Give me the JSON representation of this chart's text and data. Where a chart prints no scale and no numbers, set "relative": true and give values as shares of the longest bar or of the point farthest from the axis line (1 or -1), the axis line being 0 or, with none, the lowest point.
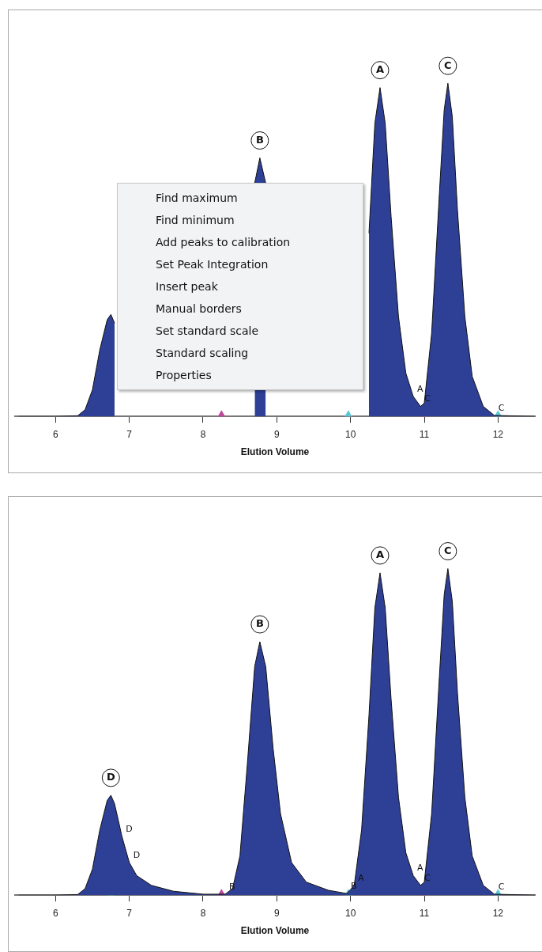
{
  "chart_data": [
    {
      "type": "area",
      "relative": true,
      "xlabel": "Elution Volume",
      "xlim": [
        5.45,
        12.5
      ],
      "xticks": [
        6,
        7,
        8,
        9,
        10,
        11,
        12
      ],
      "series": [
        {
          "color": "#2e3f96",
          "x": [
            5.5,
            6.0,
            6.3,
            6.4,
            6.5,
            6.6,
            6.7,
            6.75,
            6.8,
            6.9,
            7.0,
            7.1,
            7.3,
            7.6,
            8.0,
            8.3,
            8.4,
            8.5,
            8.6,
            8.7,
            8.77,
            8.85,
            8.95,
            9.05,
            9.2,
            9.4,
            9.7,
            9.95,
            10.05,
            10.15,
            10.25,
            10.33,
            10.4,
            10.47,
            10.55,
            10.65,
            10.75,
            10.85,
            10.95,
            11.0,
            11.1,
            11.2,
            11.27,
            11.32,
            11.38,
            11.45,
            11.55,
            11.65,
            11.8,
            11.95,
            12.5
          ],
          "values": [
            0,
            0,
            0.002,
            0.02,
            0.08,
            0.2,
            0.29,
            0.306,
            0.28,
            null,
            null,
            null,
            null,
            null,
            null,
            null,
            null,
            null,
            null,
            0.7,
            0.776,
            0.7,
            null,
            null,
            null,
            null,
            null,
            null,
            null,
            null,
            0.55,
            0.88,
            0.987,
            0.88,
            0.6,
            0.3,
            0.13,
            0.06,
            0.03,
            0.04,
            0.25,
            0.65,
            0.92,
            1,
            0.9,
            0.62,
            0.3,
            0.12,
            0.03,
            0.003,
            0
          ]
        },
        {
          "type": "scatter",
          "marker": "triangle",
          "x": [
            8.25,
            9.97,
            10.97,
            12.0
          ],
          "values": [
            0,
            0,
            0,
            0
          ],
          "colors": [
            "#c0479a",
            "#5bc8d6",
            "#c0479a",
            "#5bc8d6"
          ]
        }
      ],
      "annotations": [
        {
          "text": "B",
          "x": 8.77,
          "y": 0.776
        },
        {
          "text": "A",
          "x": 10.4,
          "y": 0.987
        },
        {
          "text": "C",
          "x": 11.32,
          "y": 1
        },
        {
          "text": "A",
          "x": 10.85,
          "y": 0.06
        },
        {
          "text": "C",
          "x": 10.95,
          "y": 0.03
        },
        {
          "text": "C",
          "x": 11.95,
          "y": 0.003
        },
        "Find maximum",
        "Find minimum",
        "Add peaks to calibration",
        "Set Peak Integration",
        "Insert peak",
        "Manual borders",
        "Set standard scale",
        "Standard scaling",
        "Properties"
      ]
    },
    {
      "type": "area",
      "relative": true,
      "xlabel": "Elution Volume",
      "xlim": [
        5.45,
        12.5
      ],
      "xticks": [
        6,
        7,
        8,
        9,
        10,
        11,
        12
      ],
      "series": [
        {
          "color": "#2e3f96",
          "x": [
            5.5,
            6.0,
            6.3,
            6.4,
            6.5,
            6.6,
            6.7,
            6.75,
            6.8,
            6.9,
            7.0,
            7.1,
            7.3,
            7.6,
            8.0,
            8.3,
            8.4,
            8.5,
            8.6,
            8.7,
            8.77,
            8.85,
            8.95,
            9.05,
            9.2,
            9.4,
            9.7,
            9.95,
            10.05,
            10.15,
            10.25,
            10.33,
            10.4,
            10.47,
            10.55,
            10.65,
            10.75,
            10.85,
            10.95,
            11.0,
            11.1,
            11.2,
            11.27,
            11.32,
            11.38,
            11.45,
            11.55,
            11.65,
            11.8,
            11.95,
            12.5
          ],
          "values": [
            0,
            0,
            0.002,
            0.02,
            0.08,
            0.2,
            0.29,
            0.306,
            0.28,
            0.18,
            0.1,
            0.06,
            0.03,
            0.012,
            0.003,
            0.003,
            0.02,
            0.12,
            0.4,
            0.7,
            0.776,
            0.7,
            0.45,
            0.25,
            0.1,
            0.04,
            0.015,
            0.005,
            0.03,
            0.2,
            0.55,
            0.88,
            0.987,
            0.88,
            0.6,
            0.3,
            0.13,
            0.06,
            0.03,
            0.04,
            0.25,
            0.65,
            0.92,
            1,
            0.9,
            0.62,
            0.3,
            0.12,
            0.03,
            0.003,
            0
          ]
        },
        {
          "type": "scatter",
          "marker": "triangle",
          "x": [
            6.75,
            8.25,
            9.97,
            10.97,
            12.0
          ],
          "values": [
            0,
            0,
            0,
            0,
            0
          ],
          "colors": [
            "#5bc8d6",
            "#c0479a",
            "#5bc8d6",
            "#c0479a",
            "#5bc8d6"
          ]
        }
      ],
      "annotations": [
        {
          "text": "D",
          "x": 6.75,
          "y": 0.306
        },
        {
          "text": "B",
          "x": 8.77,
          "y": 0.776
        },
        {
          "text": "A",
          "x": 10.4,
          "y": 0.987
        },
        {
          "text": "C",
          "x": 11.32,
          "y": 1
        },
        {
          "text": "D",
          "x": 6.9,
          "y": 0.18
        },
        {
          "text": "D",
          "x": 7.0,
          "y": 0.1
        },
        {
          "text": "B",
          "x": 8.3,
          "y": 0.003
        },
        {
          "text": "B",
          "x": 9.95,
          "y": 0.005
        },
        {
          "text": "A",
          "x": 10.05,
          "y": 0.03
        },
        {
          "text": "A",
          "x": 10.85,
          "y": 0.06
        },
        {
          "text": "C",
          "x": 10.95,
          "y": 0.03
        },
        {
          "text": "C",
          "x": 11.95,
          "y": 0.003
        }
      ]
    }
  ]
}
